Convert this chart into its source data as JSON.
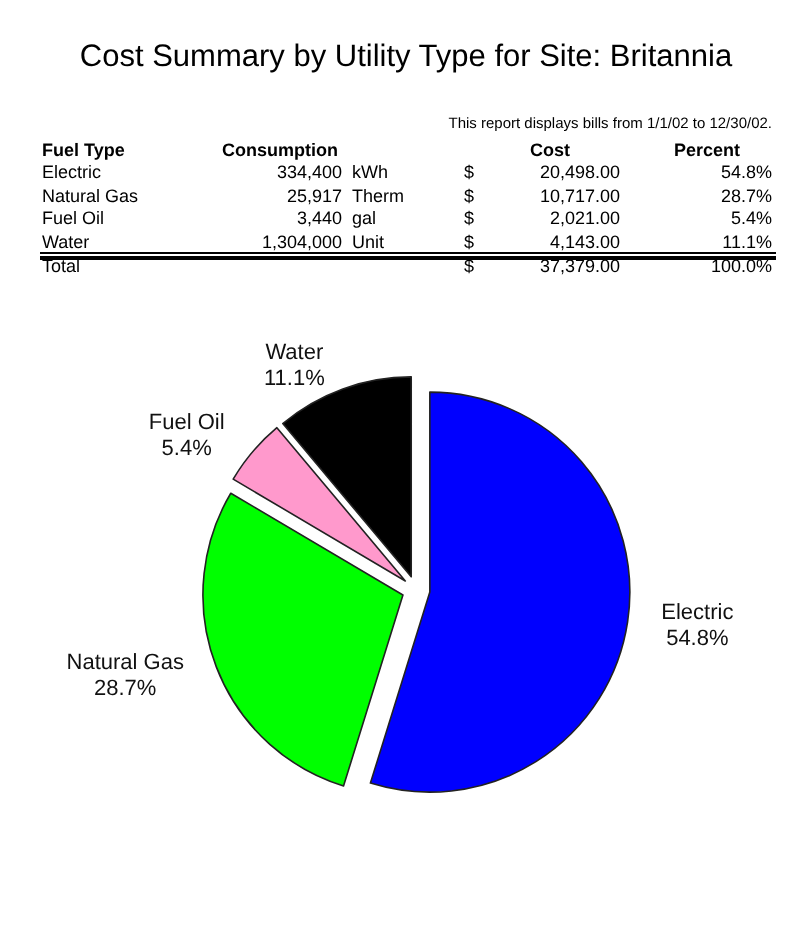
{
  "chart_data": [
    {
      "type": "other",
      "title": "Cost Summary by Utility Type for Site: Britannia",
      "subtitle": "This report displays bills from 1/1/02 to 12/30/02.",
      "annotations": [
        "Fuel Type",
        "Consumption",
        "Cost",
        "Percent",
        "Electric",
        "334,400",
        "kWh",
        "$",
        "20,498.00",
        "54.8%",
        "Natural Gas",
        "25,917",
        "Therm",
        "$",
        "10,717.00",
        "28.7%",
        "Fuel Oil",
        "3,440",
        "gal",
        "$",
        "2,021.00",
        "5.4%",
        "Water",
        "1,304,000",
        "Unit",
        "$",
        "4,143.00",
        "11.1%",
        "Total",
        "$",
        "37,379.00",
        "100.0%"
      ]
    },
    {
      "type": "pie",
      "categories": [
        "Electric",
        "Natural Gas",
        "Fuel Oil",
        "Water"
      ],
      "values": [
        54.8,
        28.7,
        5.4,
        11.1
      ],
      "colors": [
        "#0000ff",
        "#00ff00",
        "#ff99cc",
        "#000000"
      ],
      "value_labels": [
        "54.8%",
        "28.7%",
        "5.4%",
        "11.1%"
      ]
    }
  ]
}
